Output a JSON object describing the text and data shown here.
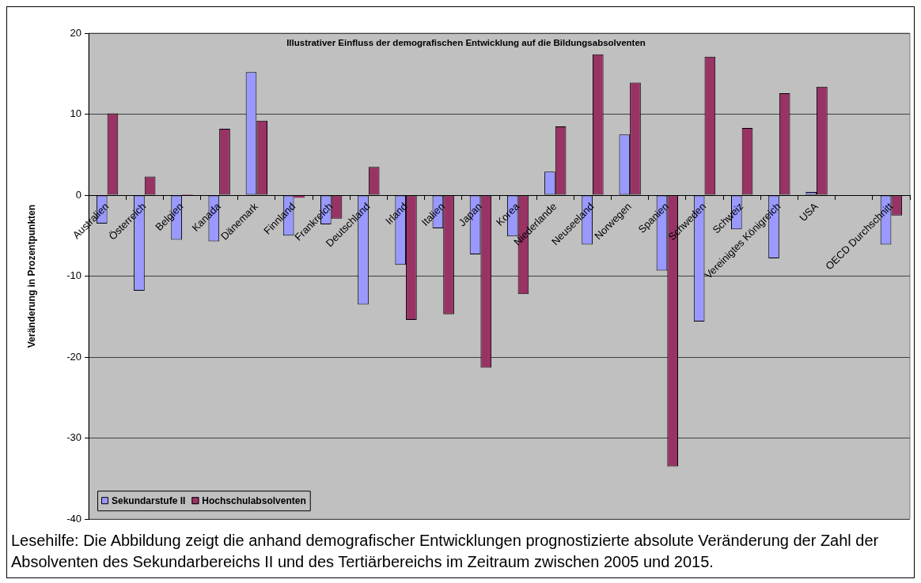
{
  "chart_data": {
    "type": "bar",
    "title": "Illustrativer Einfluss der demografischen Entwicklung auf die Bildungsabsolventen",
    "ylabel": "Veränderung in Prozentpunkten",
    "annotations": [
      "Lesehilfe: Die Abbildung zeigt die anhand demografischer Entwicklungen prognostizierte absolute Veränderung der Zahl der Absolventen des Sekundarbereichs II und des Tertiärbereichs im Zeitraum zwischen 2005 und 2015."
    ],
    "categories": [
      "Australien",
      "Österreich",
      "Belgien",
      "Kanada",
      "Dänemark",
      "Finnland",
      "Frankreich",
      "Deutschland",
      "Irland",
      "Italien",
      "Japan",
      "Korea",
      "Niederlande",
      "Neuseeland",
      "Norwegen",
      "Spanien",
      "Schweden",
      "Schweiz",
      "Vereinigtes Königreich",
      "USA",
      null,
      "OECD Durchschnitt"
    ],
    "series": [
      {
        "name": "Sekundarstufe II",
        "color": "#9999ff",
        "values": [
          -3.5,
          -11.8,
          -5.5,
          -5.7,
          15.2,
          -5.0,
          -3.6,
          -13.5,
          -8.6,
          -4.1,
          -7.3,
          -5.1,
          2.9,
          -6.1,
          7.5,
          -9.3,
          -15.6,
          -4.2,
          -7.8,
          0.4,
          null,
          -6.1
        ]
      },
      {
        "name": "Hochschulabsolventen",
        "color": "#993366",
        "values": [
          10.1,
          2.3,
          0.1,
          8.2,
          9.2,
          -0.3,
          -2.9,
          3.5,
          -15.4,
          -14.7,
          -21.3,
          -12.2,
          8.5,
          17.4,
          13.9,
          -33.5,
          17.1,
          8.3,
          12.6,
          13.4,
          null,
          -2.5
        ]
      }
    ],
    "ylim": [
      -40,
      20
    ],
    "yticks": [
      -40,
      -30,
      -20,
      -10,
      0,
      10,
      20
    ],
    "grid": "y",
    "legend": "bottom left"
  }
}
